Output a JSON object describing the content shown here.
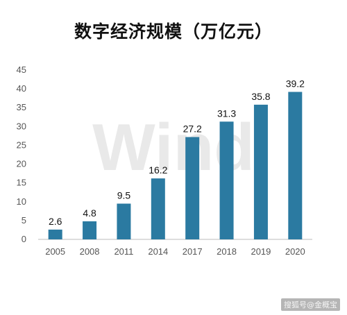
{
  "colors": {
    "bar": "#2b7aa1",
    "axis": "#bbbbbb",
    "grid": "#e6e6e6",
    "text": "#111111",
    "tick": "#555555",
    "watermark": "#e9e9e9"
  },
  "watermark": "Wind",
  "footer_credit": "搜狐号@金概宝",
  "chart_data": {
    "type": "bar",
    "title": "数字经济规模（万亿元）",
    "xlabel": "",
    "ylabel": "",
    "categories": [
      "2005",
      "2008",
      "2011",
      "2014",
      "2017",
      "2018",
      "2019",
      "2020"
    ],
    "values": [
      2.6,
      4.8,
      9.5,
      16.2,
      27.2,
      31.3,
      35.8,
      39.2
    ],
    "value_labels": [
      "2.6",
      "4.8",
      "9.5",
      "16.2",
      "27.2",
      "31.3",
      "35.8",
      "39.2"
    ],
    "ylim": [
      0,
      45
    ],
    "yticks": [
      0,
      5,
      10,
      15,
      20,
      25,
      30,
      35,
      40,
      45
    ],
    "grid": false,
    "legend": "none"
  }
}
